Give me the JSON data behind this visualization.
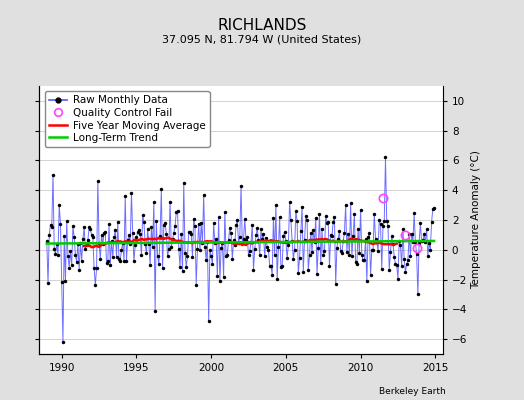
{
  "title": "RICHLANDS",
  "subtitle": "37.095 N, 81.794 W (United States)",
  "ylabel": "Temperature Anomaly (°C)",
  "credit": "Berkeley Earth",
  "xlim": [
    1988.5,
    2015.5
  ],
  "ylim": [
    -7,
    11
  ],
  "yticks": [
    -6,
    -4,
    -2,
    0,
    2,
    4,
    6,
    8,
    10
  ],
  "xticks": [
    1990,
    1995,
    2000,
    2005,
    2010,
    2015
  ],
  "bg_color": "#e0e0e0",
  "plot_bg_color": "#ffffff",
  "raw_color": "#5555ff",
  "raw_lw": 0.7,
  "marker_color": "#000000",
  "marker_size": 2.5,
  "moving_avg_color": "#ff0000",
  "moving_avg_lw": 1.8,
  "trend_color": "#00cc00",
  "trend_lw": 1.8,
  "qc_fail_color": "#ff44ff",
  "qc_fail_size": 6,
  "title_fontsize": 11,
  "subtitle_fontsize": 8,
  "label_fontsize": 7.5,
  "tick_fontsize": 7.5,
  "legend_fontsize": 7.5,
  "grid_color": "#cccccc",
  "qc_fail_points": [
    [
      2011.5,
      3.5
    ],
    [
      2013.0,
      1.0
    ],
    [
      2013.8,
      0.1
    ]
  ]
}
